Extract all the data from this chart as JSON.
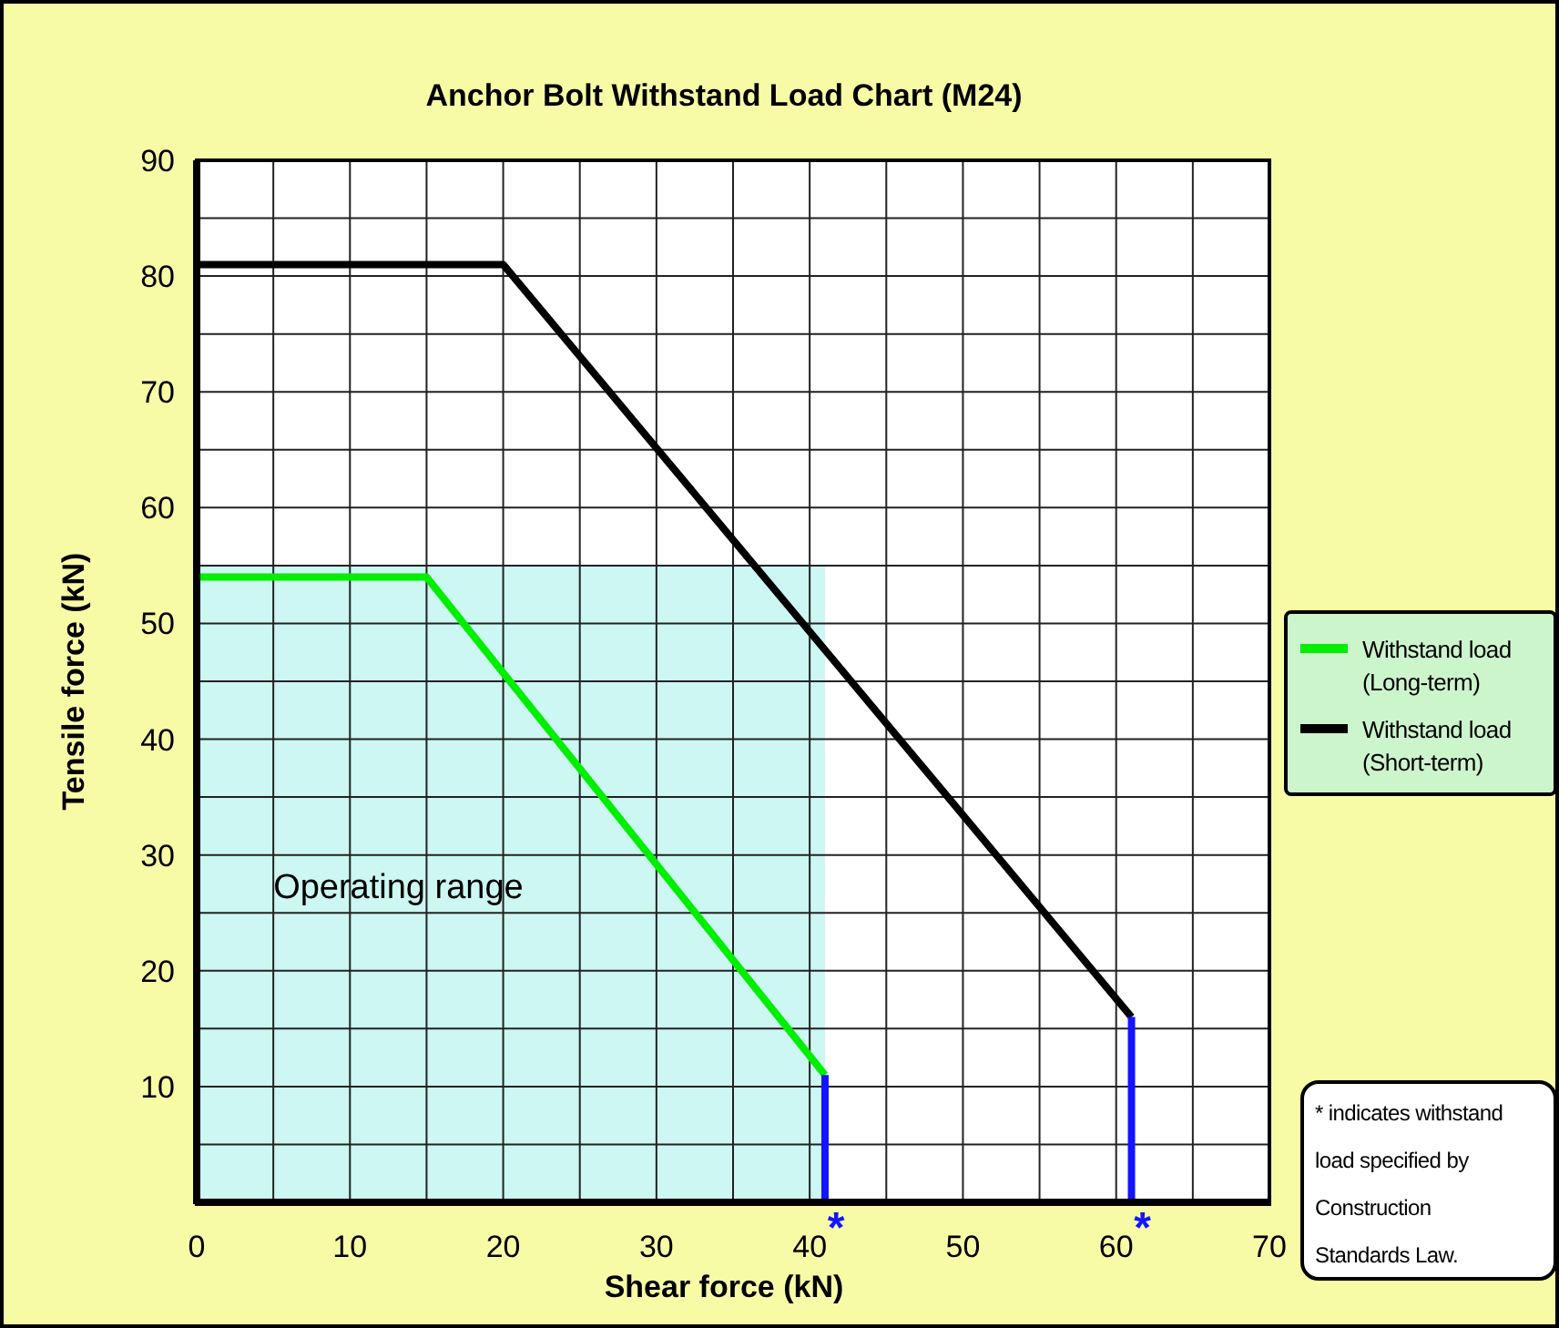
{
  "chart_data": {
    "type": "line",
    "title": "Anchor Bolt Withstand Load Chart (M24)",
    "xlabel": "Shear force (kN)",
    "ylabel": "Tensile force (kN)",
    "xlim": [
      0,
      70
    ],
    "ylim": [
      0,
      90
    ],
    "xticks": [
      0,
      {
        "value": 5,
        "label": null
      },
      10,
      {
        "value": 15,
        "label": null
      },
      20,
      {
        "value": 25,
        "label": null
      },
      30,
      {
        "value": 35,
        "label": null
      },
      40,
      {
        "value": 45,
        "label": null
      },
      50,
      {
        "value": 55,
        "label": null
      },
      60,
      {
        "value": 65,
        "label": null
      },
      70
    ],
    "yticks": [
      {
        "value": 0,
        "label": null
      },
      {
        "value": 5,
        "label": null
      },
      10,
      {
        "value": 15,
        "label": null
      },
      20,
      {
        "value": 25,
        "label": null
      },
      30,
      {
        "value": 35,
        "label": null
      },
      40,
      {
        "value": 45,
        "label": null
      },
      50,
      {
        "value": 55,
        "label": null
      },
      60,
      {
        "value": 65,
        "label": null
      },
      70,
      {
        "value": 75,
        "label": null
      },
      80,
      {
        "value": 85,
        "label": null
      },
      90
    ],
    "grid": true,
    "legend": "right",
    "line_style": "solid",
    "marker": "none",
    "series": [
      {
        "type": "area",
        "color": "#ccf7f2",
        "x": [
          0,
          41
        ],
        "values": [
          55,
          55
        ]
      },
      {
        "name": "Withstand load (Long-term)",
        "color": "#00ee00",
        "x": [
          0,
          15,
          41
        ],
        "values": [
          54,
          54,
          11
        ]
      },
      {
        "name": "Withstand load (Short-term)",
        "color": "#000000",
        "x": [
          0,
          20,
          61
        ],
        "values": [
          81,
          81,
          16
        ]
      },
      {
        "color": "#1414ff",
        "x": [
          41,
          41
        ],
        "values": [
          11,
          0
        ]
      },
      {
        "color": "#1414ff",
        "x": [
          61,
          61
        ],
        "values": [
          16,
          0
        ]
      }
    ],
    "annotations": [
      "Operating range",
      {
        "text": "*",
        "x": 41,
        "y": 0
      },
      {
        "text": "*",
        "x": 61,
        "y": 0
      },
      "* indicates withstand load specified by Construction Standards Law."
    ]
  }
}
